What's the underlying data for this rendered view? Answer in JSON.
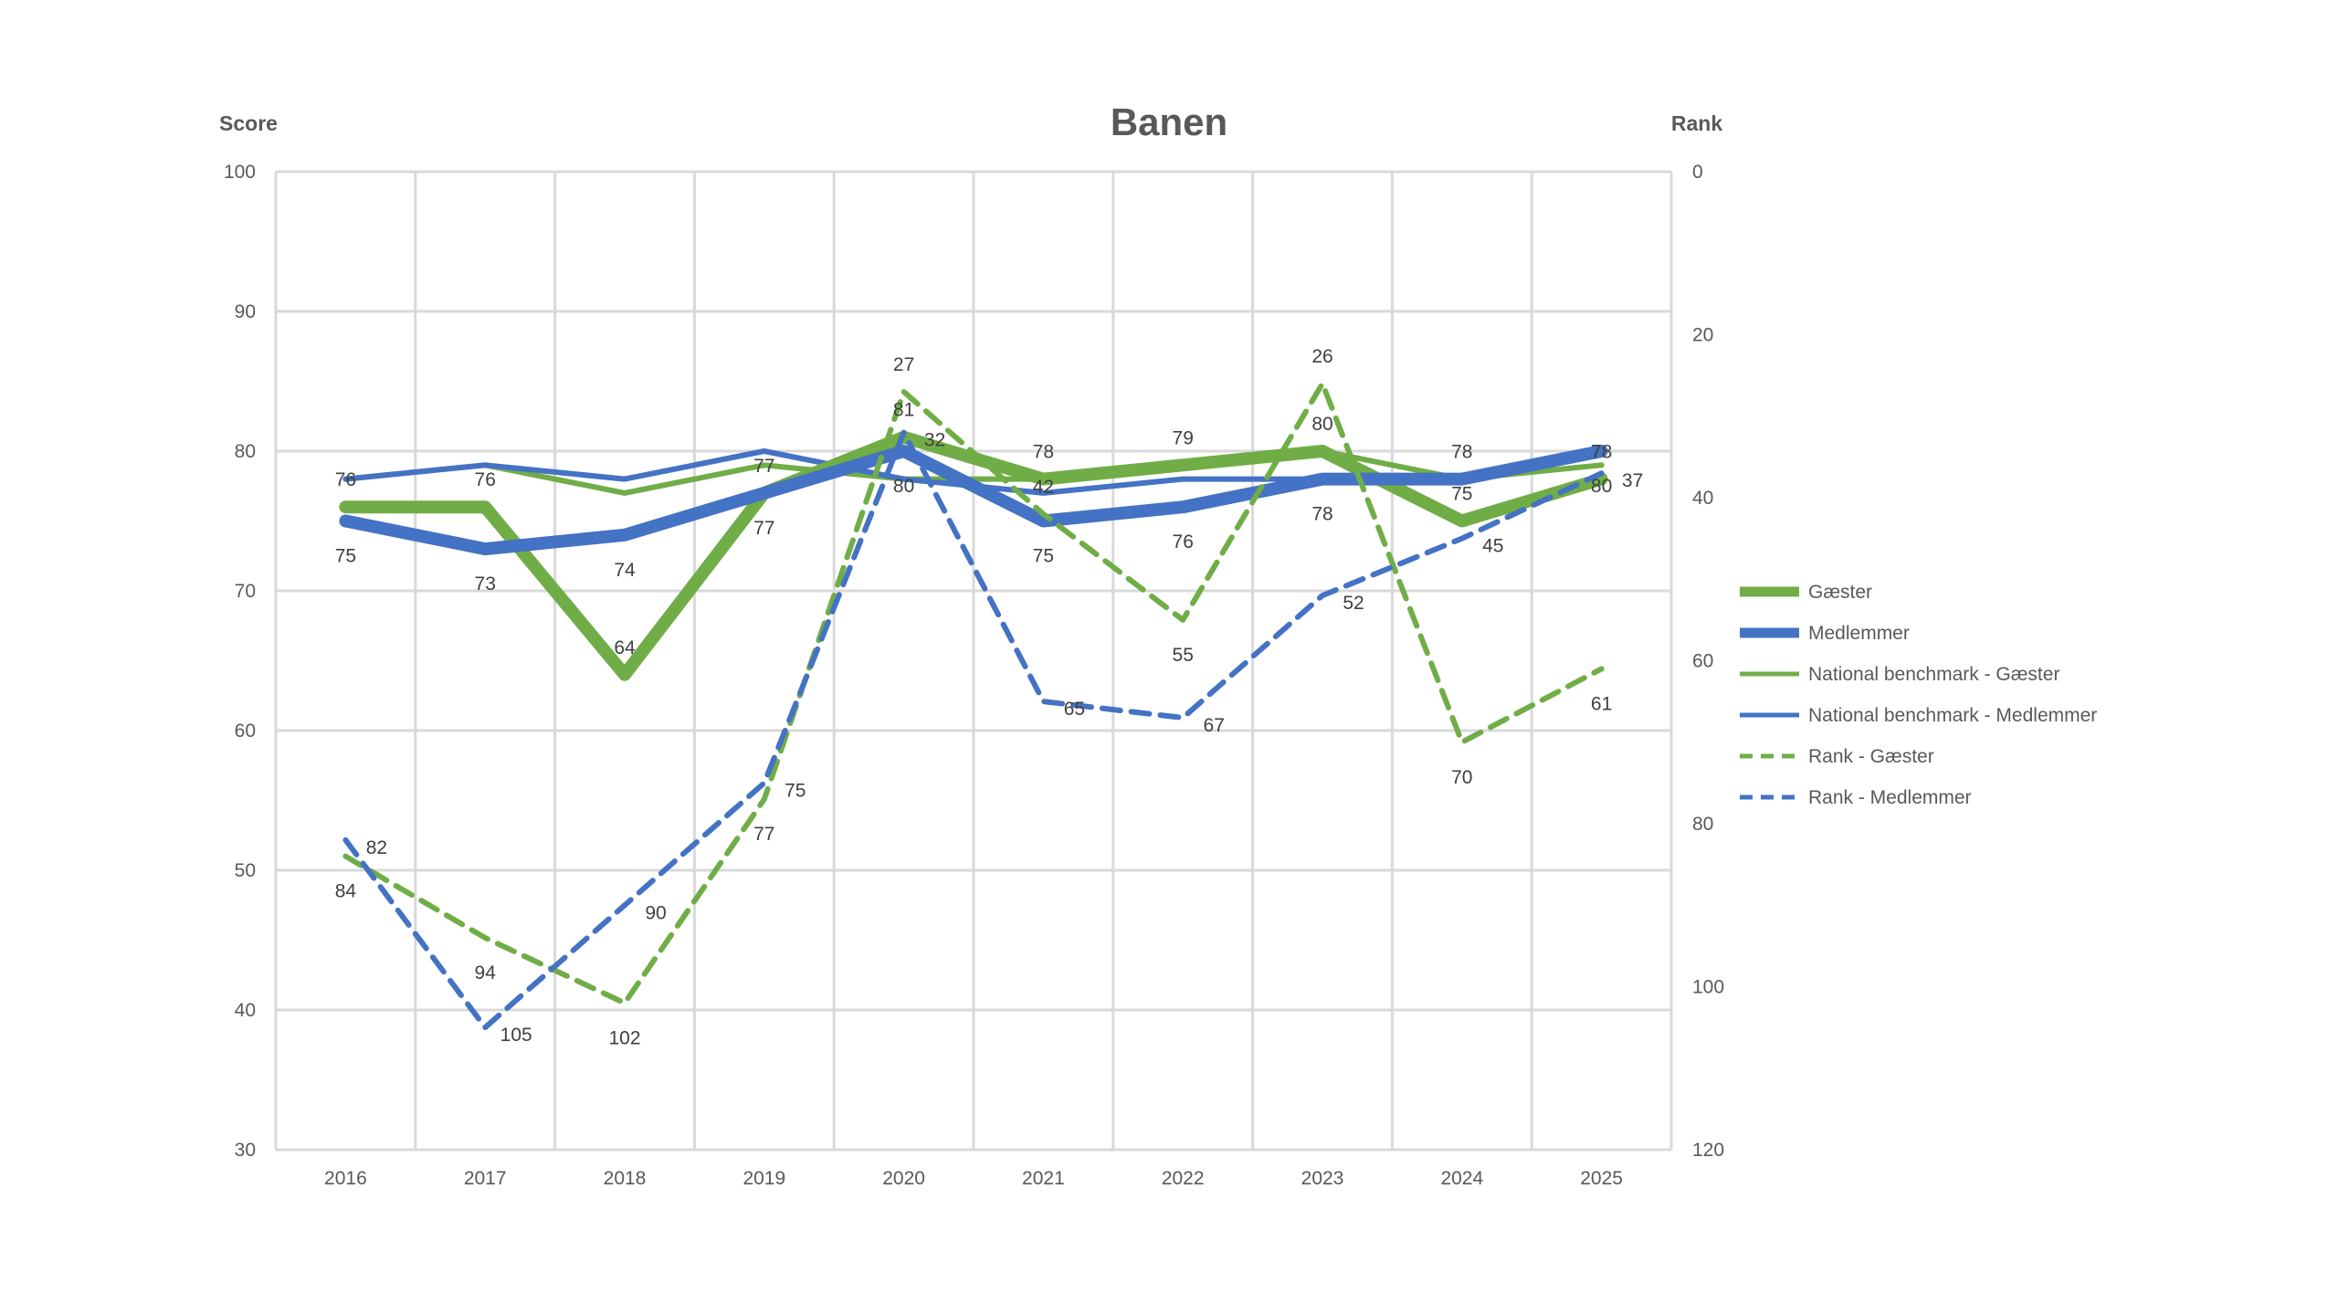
{
  "chart_data": {
    "type": "line",
    "title": "Banen",
    "ylabel": "Score",
    "y2label": "Rank",
    "ylim": [
      30,
      100
    ],
    "y2lim": [
      0,
      120
    ],
    "y2_reversed": true,
    "yticks": [
      30,
      40,
      50,
      60,
      70,
      80,
      90,
      100
    ],
    "y2ticks": [
      0,
      20,
      40,
      60,
      80,
      100,
      120
    ],
    "categories": [
      "2016",
      "2017",
      "2018",
      "2019",
      "2020",
      "2021",
      "2022",
      "2023",
      "2024",
      "2025"
    ],
    "grid": true,
    "legend_position": "right",
    "series": [
      {
        "name": "Gæster",
        "axis": "left",
        "style": "thick",
        "color": "#70AD47",
        "labels": true,
        "values": [
          76,
          76,
          64,
          77,
          81,
          78,
          79,
          80,
          75,
          78
        ]
      },
      {
        "name": "Medlemmer",
        "axis": "left",
        "style": "thick",
        "color": "#4472C4",
        "labels": true,
        "values": [
          75,
          73,
          74,
          77,
          80,
          75,
          76,
          78,
          78,
          80
        ]
      },
      {
        "name": "National benchmark - Gæster",
        "axis": "left",
        "style": "thin",
        "color": "#70AD47",
        "labels": false,
        "values": [
          78,
          79,
          77,
          79,
          78,
          78,
          79,
          80,
          78,
          79
        ]
      },
      {
        "name": "National benchmark - Medlemmer",
        "axis": "left",
        "style": "thin",
        "color": "#4472C4",
        "labels": false,
        "values": [
          78,
          79,
          78,
          80,
          78,
          77,
          78,
          78,
          78,
          80
        ]
      },
      {
        "name": "Rank - Gæster",
        "axis": "right",
        "style": "dashed",
        "color": "#70AD47",
        "labels": true,
        "values": [
          84,
          94,
          102,
          77,
          27,
          42,
          55,
          26,
          70,
          61
        ]
      },
      {
        "name": "Rank - Medlemmer",
        "axis": "right",
        "style": "dashed",
        "color": "#4472C4",
        "labels": true,
        "values": [
          82,
          105,
          90,
          75,
          32,
          65,
          67,
          52,
          45,
          37
        ]
      }
    ]
  }
}
